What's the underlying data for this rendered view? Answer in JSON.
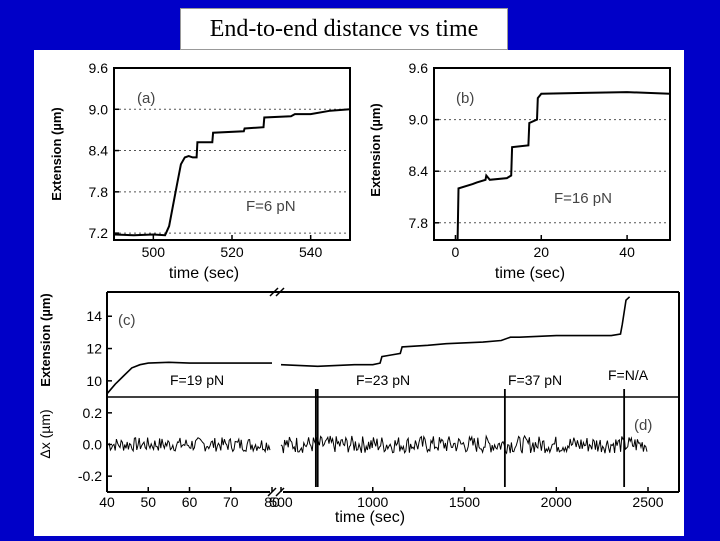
{
  "slide": {
    "title": "End-to-end distance vs time",
    "background_color": "#0000c8"
  },
  "chart_data": [
    {
      "id": "a",
      "type": "line",
      "panel_label": "(a)",
      "annotation": "F=6 pN",
      "xlabel": "time (sec)",
      "ylabel": "Extension (µm)",
      "xlim": [
        490,
        550
      ],
      "ylim": [
        7.1,
        9.6
      ],
      "xticks": [
        500,
        520,
        540
      ],
      "yticks": [
        7.2,
        7.8,
        8.4,
        9.0,
        9.6
      ],
      "grid": "dotted horizontal",
      "series": [
        {
          "x": [
            490,
            495,
            500,
            503,
            504,
            505,
            506,
            507,
            508,
            509,
            510,
            511,
            511.2,
            515,
            515.2,
            523,
            523.2,
            528,
            528.2,
            535,
            536,
            540,
            545,
            550
          ],
          "y": [
            7.18,
            7.17,
            7.18,
            7.17,
            7.3,
            7.6,
            7.9,
            8.2,
            8.3,
            8.32,
            8.3,
            8.3,
            8.52,
            8.52,
            8.66,
            8.68,
            8.72,
            8.74,
            8.88,
            8.9,
            8.93,
            8.93,
            8.98,
            9.0
          ]
        }
      ]
    },
    {
      "id": "b",
      "type": "line",
      "panel_label": "(b)",
      "annotation": "F=16 pN",
      "xlabel": "time (sec)",
      "ylabel": "Extension (µm)",
      "xlim": [
        -5,
        50
      ],
      "ylim": [
        7.6,
        9.6
      ],
      "xticks": [
        0,
        20,
        40
      ],
      "yticks": [
        7.8,
        8.4,
        9.0,
        9.6
      ],
      "grid": "dotted horizontal",
      "series": [
        {
          "x": [
            0.5,
            0.7,
            4,
            5,
            7,
            7.2,
            8,
            12,
            13,
            13.2,
            17,
            17.2,
            19,
            19.2,
            20,
            30,
            40,
            50
          ],
          "y": [
            7.6,
            8.2,
            8.25,
            8.27,
            8.3,
            8.35,
            8.3,
            8.32,
            8.35,
            8.68,
            8.7,
            8.96,
            9.0,
            9.25,
            9.3,
            9.31,
            9.32,
            9.3
          ]
        }
      ]
    },
    {
      "id": "c",
      "type": "line",
      "panel_label": "(c)",
      "ylabel": "Extension (µm)",
      "ylim": [
        9,
        15.5
      ],
      "yticks": [
        10,
        12,
        14
      ],
      "annotations": [
        "F=19 pN",
        "F=23 pN",
        "F=37 pN",
        "F=N/A"
      ],
      "series": [
        {
          "x": [
            40,
            42,
            44,
            46,
            48,
            50,
            55,
            60,
            70,
            80
          ],
          "y": [
            9.2,
            9.8,
            10.3,
            10.8,
            11.0,
            11.1,
            11.15,
            11.1,
            11.1,
            11.1
          ]
        },
        {
          "x": [
            500,
            700,
            900,
            1000,
            1040,
            1050,
            1100,
            1150,
            1160,
            1300,
            1400,
            1600,
            1700,
            1750,
            1800,
            2000,
            2200,
            2300,
            2350,
            2360,
            2380,
            2400
          ],
          "y": [
            11.0,
            10.9,
            11.0,
            11.0,
            11.1,
            11.5,
            11.6,
            11.7,
            12.1,
            12.2,
            12.3,
            12.4,
            12.5,
            12.7,
            12.7,
            12.8,
            12.8,
            12.8,
            12.9,
            13.5,
            15.0,
            15.2
          ]
        }
      ]
    },
    {
      "id": "d",
      "type": "line",
      "panel_label": "(d)",
      "xlabel": "time (sec)",
      "ylabel": "Δx (µm)",
      "ylim": [
        -0.3,
        0.3
      ],
      "yticks": [
        0.2,
        0.0,
        -0.2
      ],
      "xticks_left": [
        40,
        50,
        60,
        70,
        80
      ],
      "xticks_right": [
        500,
        1000,
        1500,
        2000,
        2500
      ],
      "noise_amplitude": 0.05,
      "spikes_x": [
        690,
        700,
        1720,
        2370
      ],
      "x_break": true
    }
  ]
}
